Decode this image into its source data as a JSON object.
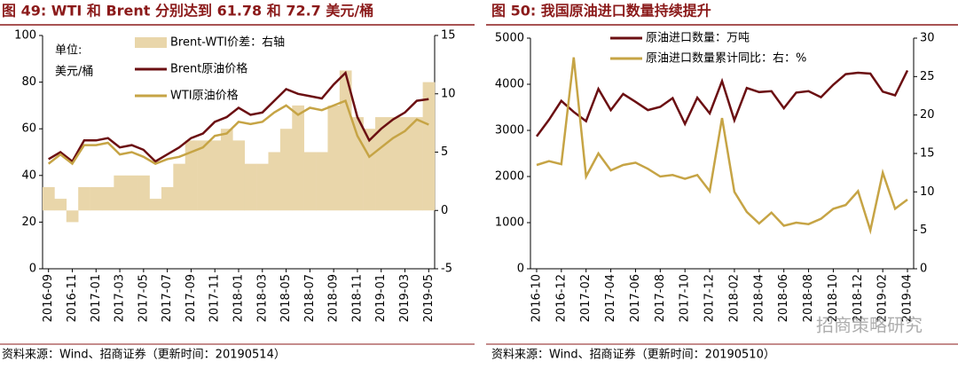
{
  "chart_data": [
    {
      "type": "line",
      "title": "图 49:  WTI 和 Brent 分别达到 61.78 和 72.7 美元/桶",
      "unit_label": [
        "单位:",
        "美元/桶"
      ],
      "source": "资料来源：Wind、招商证券（更新时间：20190514）",
      "categories": [
        "2016-09",
        null,
        "2016-11",
        null,
        "2017-01",
        null,
        "2017-03",
        null,
        "2017-05",
        null,
        "2017-07",
        null,
        "2017-09",
        null,
        "2017-11",
        null,
        "2018-01",
        null,
        "2018-03",
        null,
        "2018-05",
        null,
        "2018-07",
        null,
        "2018-09",
        null,
        "2018-11",
        null,
        "2019-01",
        null,
        "2019-03",
        null,
        "2019-05"
      ],
      "series": [
        {
          "name": "Brent-WTI价差：右轴",
          "kind": "bar",
          "axis": "y2",
          "color": "#e9d6aa",
          "values": [
            2,
            1,
            -1,
            2,
            2,
            2,
            3,
            3,
            3,
            1,
            2,
            4,
            6,
            6,
            6,
            7,
            6,
            4,
            4,
            5,
            7,
            9,
            5,
            5,
            9,
            12,
            8,
            7,
            8,
            8,
            8,
            8,
            11
          ]
        },
        {
          "name": "Brent原油价格",
          "kind": "line",
          "axis": "y",
          "color": "#6b0f12",
          "values": [
            47,
            50,
            46,
            55,
            55,
            56,
            52,
            53,
            51,
            46,
            49,
            52,
            56,
            58,
            63,
            65,
            69,
            66,
            67,
            72,
            77,
            75,
            74,
            73,
            79,
            84,
            65,
            55,
            60,
            64,
            67,
            72,
            72.7
          ]
        },
        {
          "name": "WTI原油价格",
          "kind": "line",
          "axis": "y",
          "color": "#c6a445",
          "values": [
            45,
            49,
            45,
            53,
            53,
            54,
            49,
            50,
            48,
            45,
            47,
            48,
            50,
            52,
            57,
            58,
            63,
            62,
            63,
            67,
            70,
            66,
            69,
            68,
            70,
            72,
            57,
            48,
            52,
            56,
            59,
            64,
            61.78
          ]
        }
      ],
      "ylim": [
        0,
        100
      ],
      "yticks": [
        0,
        20,
        40,
        60,
        80,
        100
      ],
      "y2lim": [
        -5,
        15
      ],
      "y2ticks": [
        -5,
        0,
        5,
        10,
        15
      ]
    },
    {
      "type": "line",
      "title": "图 50:  我国原油进口数量持续提升",
      "source": "资料来源：Wind、招商证券（更新时间：20190510）",
      "watermark": "招商策略研究",
      "categories": [
        "2016-10",
        null,
        "2016-12",
        null,
        "2017-02",
        null,
        "2017-04",
        null,
        "2017-06",
        null,
        "2017-08",
        null,
        "2017-10",
        null,
        "2017-12",
        null,
        "2018-02",
        null,
        "2018-04",
        null,
        "2018-06",
        null,
        "2018-08",
        null,
        "2018-10",
        null,
        "2018-12",
        null,
        "2019-02",
        null,
        "2019-04"
      ],
      "series": [
        {
          "name": "原油进口数量：万吨",
          "kind": "line",
          "axis": "y",
          "color": "#6b0f12",
          "values": [
            2870,
            3230,
            3640,
            3400,
            3200,
            3900,
            3440,
            3790,
            3620,
            3440,
            3510,
            3700,
            3140,
            3710,
            3370,
            4070,
            3220,
            3920,
            3830,
            3850,
            3480,
            3820,
            3850,
            3720,
            3990,
            4220,
            4250,
            4230,
            3840,
            3760,
            4300
          ]
        },
        {
          "name": "原油进口数量累计同比：右：%",
          "kind": "line",
          "axis": "y2",
          "color": "#c6a445",
          "values": [
            13.5,
            14,
            13.6,
            27.5,
            12,
            15,
            12.8,
            13.5,
            13.8,
            13,
            12,
            12.2,
            11.7,
            12.2,
            10.1,
            19.6,
            10,
            7.4,
            5.9,
            7.3,
            5.6,
            6,
            5.8,
            6.5,
            7.8,
            8.3,
            10.1,
            5,
            12.5,
            7.8,
            9
          ]
        }
      ],
      "ylim": [
        0,
        5000
      ],
      "yticks": [
        0,
        1000,
        2000,
        3000,
        4000,
        5000
      ],
      "y2lim": [
        0,
        30
      ],
      "y2ticks": [
        0,
        5,
        10,
        15,
        20,
        25,
        30
      ]
    }
  ]
}
